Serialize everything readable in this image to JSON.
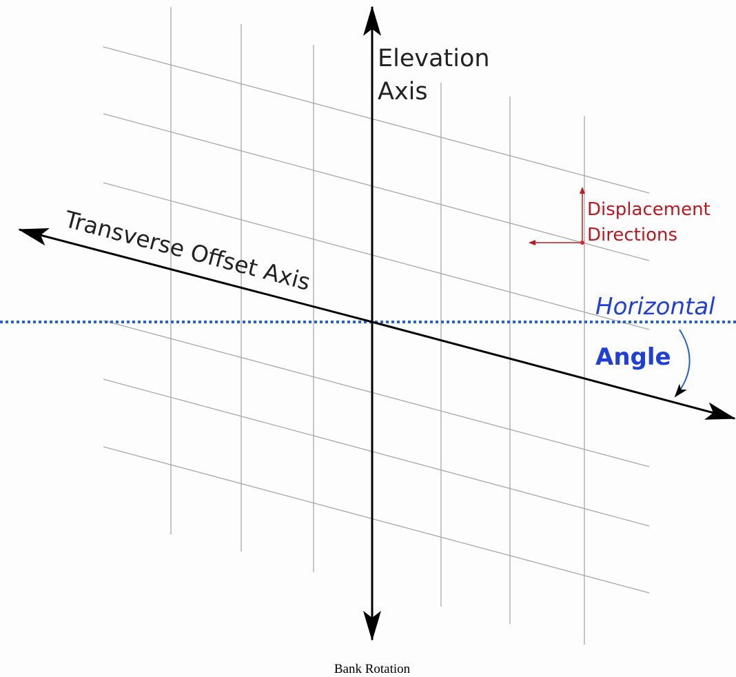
{
  "labels": {
    "elevation_axis": [
      "Elevation",
      "Axis"
    ],
    "transverse_offset_axis": "Transverse Offset Axis",
    "displacement_directions": [
      "Displacement",
      "Directions"
    ],
    "horizontal": "Horizontal",
    "angle": "Angle"
  },
  "caption": "Bank Rotation"
}
